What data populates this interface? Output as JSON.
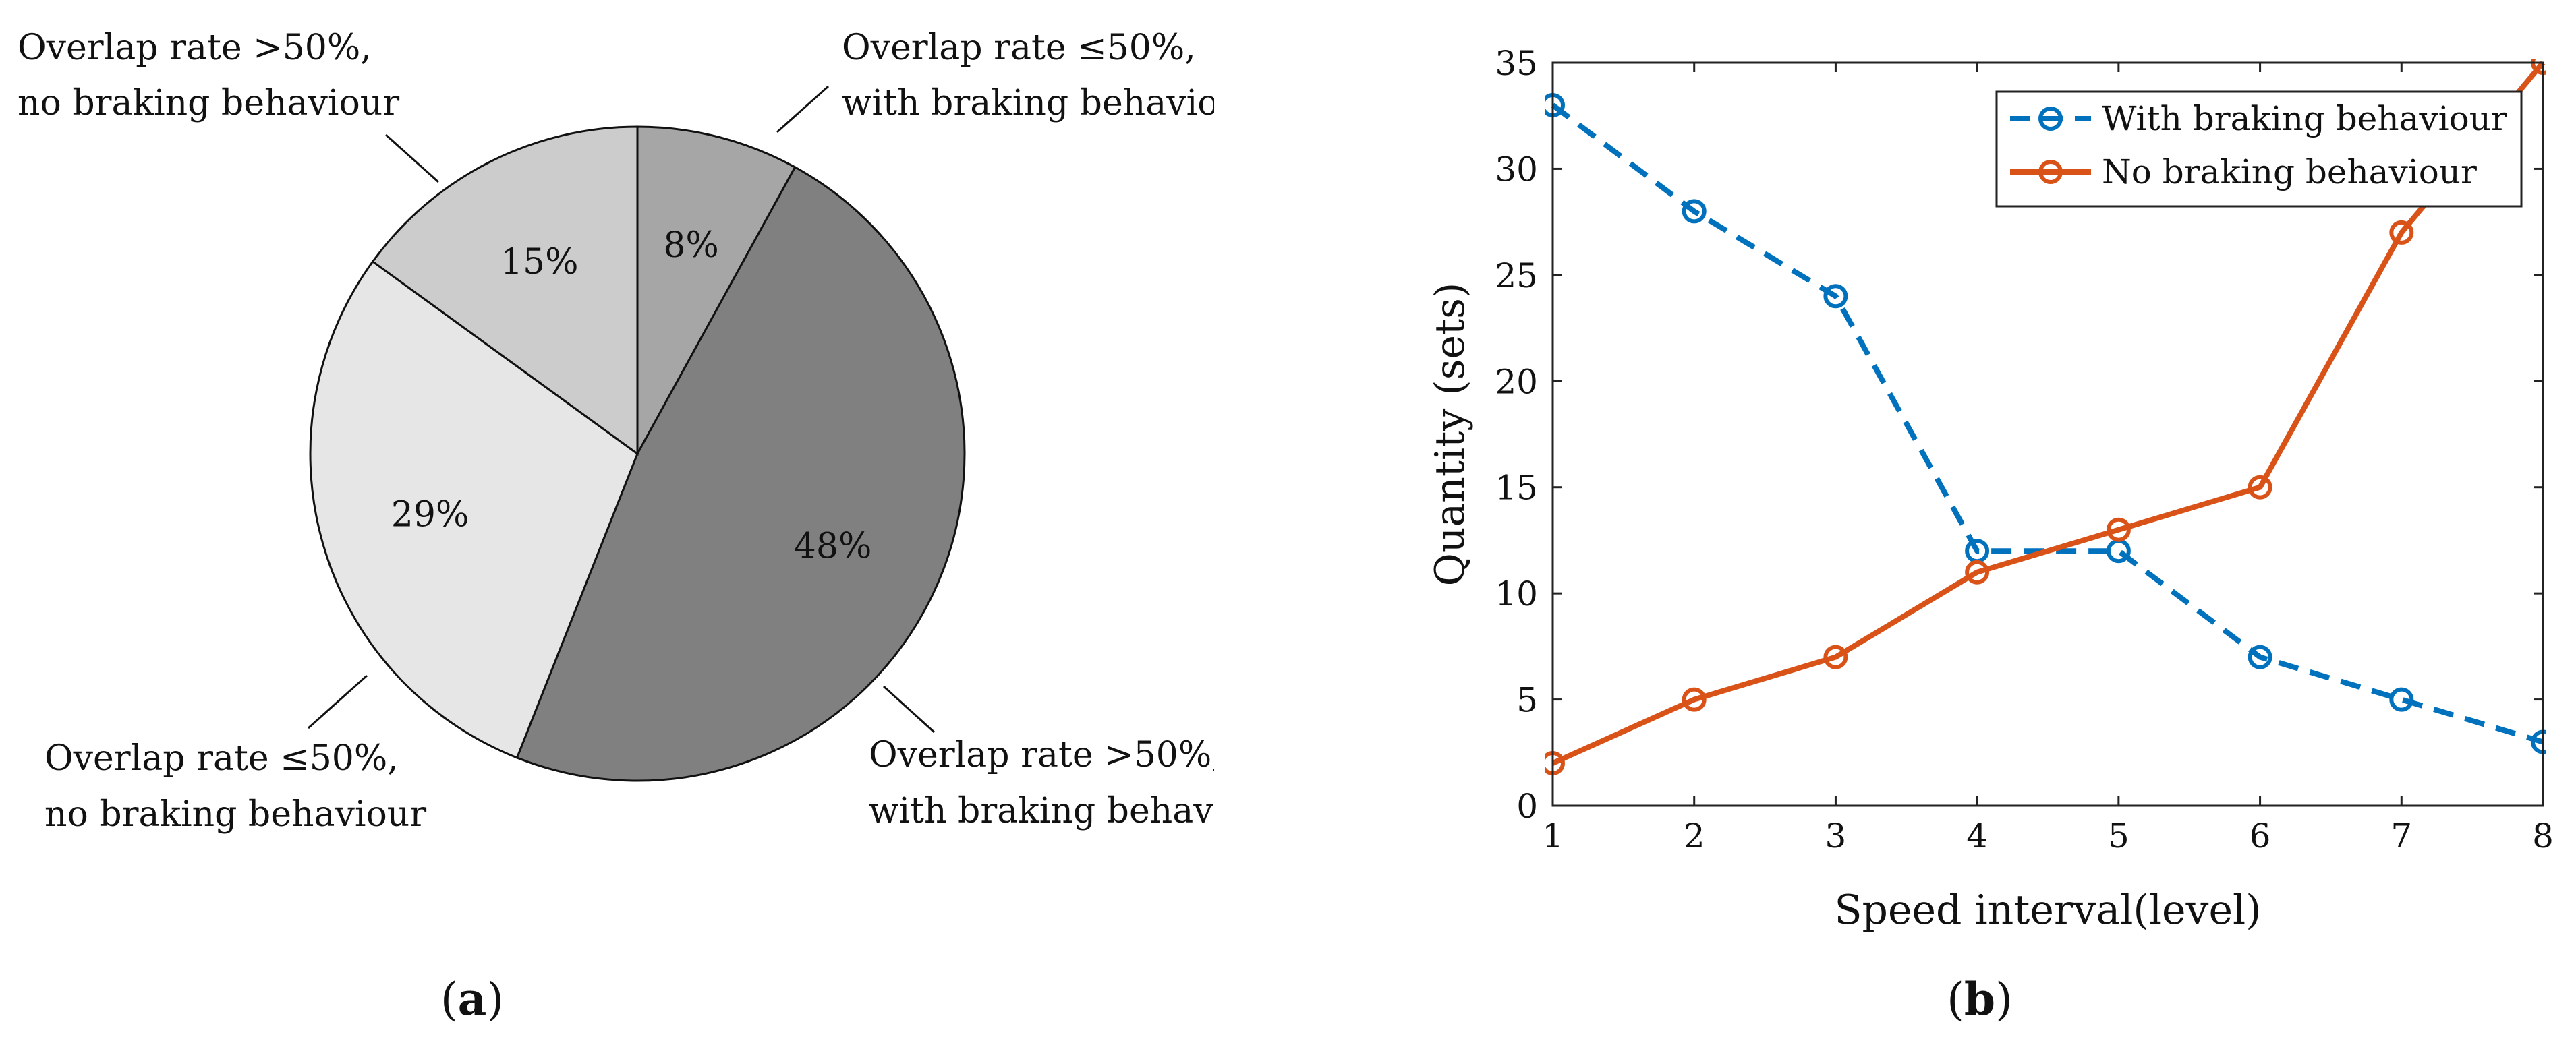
{
  "chart_data": [
    {
      "type": "pie",
      "panel_caption": {
        "open": "(",
        "letter": "a",
        "close": ")"
      },
      "slices": [
        {
          "value": 8,
          "percent_label": "8%",
          "label_line1": "Overlap rate ≤50%,",
          "label_line2": "with braking behavio",
          "color": "#a6a6a6"
        },
        {
          "value": 48,
          "percent_label": "48%",
          "label_line1": "Overlap rate >50%,",
          "label_line2": "with braking behav",
          "color": "#808080"
        },
        {
          "value": 29,
          "percent_label": "29%",
          "label_line1": "Overlap rate ≤50%,",
          "label_line2": "no braking behaviour",
          "color": "#e6e6e6"
        },
        {
          "value": 15,
          "percent_label": "15%",
          "label_line1": "Overlap rate >50%,",
          "label_line2": "no braking behaviour",
          "color": "#cccccc"
        }
      ]
    },
    {
      "type": "line",
      "panel_caption": {
        "open": "(",
        "letter": "b",
        "close": ")"
      },
      "xlabel": "Speed interval(level)",
      "ylabel": "Quantity (sets)",
      "xlim": [
        1,
        8
      ],
      "ylim": [
        0,
        35
      ],
      "xticks": [
        "1",
        "2",
        "3",
        "4",
        "5",
        "6",
        "7",
        "8"
      ],
      "yticks": [
        "0",
        "5",
        "10",
        "15",
        "20",
        "25",
        "30",
        "35"
      ],
      "x": [
        1,
        2,
        3,
        4,
        5,
        6,
        7,
        8
      ],
      "series": [
        {
          "name": "With braking behaviour",
          "values": [
            33,
            28,
            24,
            12,
            12,
            7,
            5,
            3
          ],
          "color": "#0072bd",
          "style": "dashed"
        },
        {
          "name": "No braking behaviour",
          "values": [
            2,
            5,
            7,
            11,
            13,
            15,
            27,
            35
          ],
          "color": "#d95319",
          "style": "solid"
        }
      ],
      "legend_position": "top-right"
    }
  ]
}
